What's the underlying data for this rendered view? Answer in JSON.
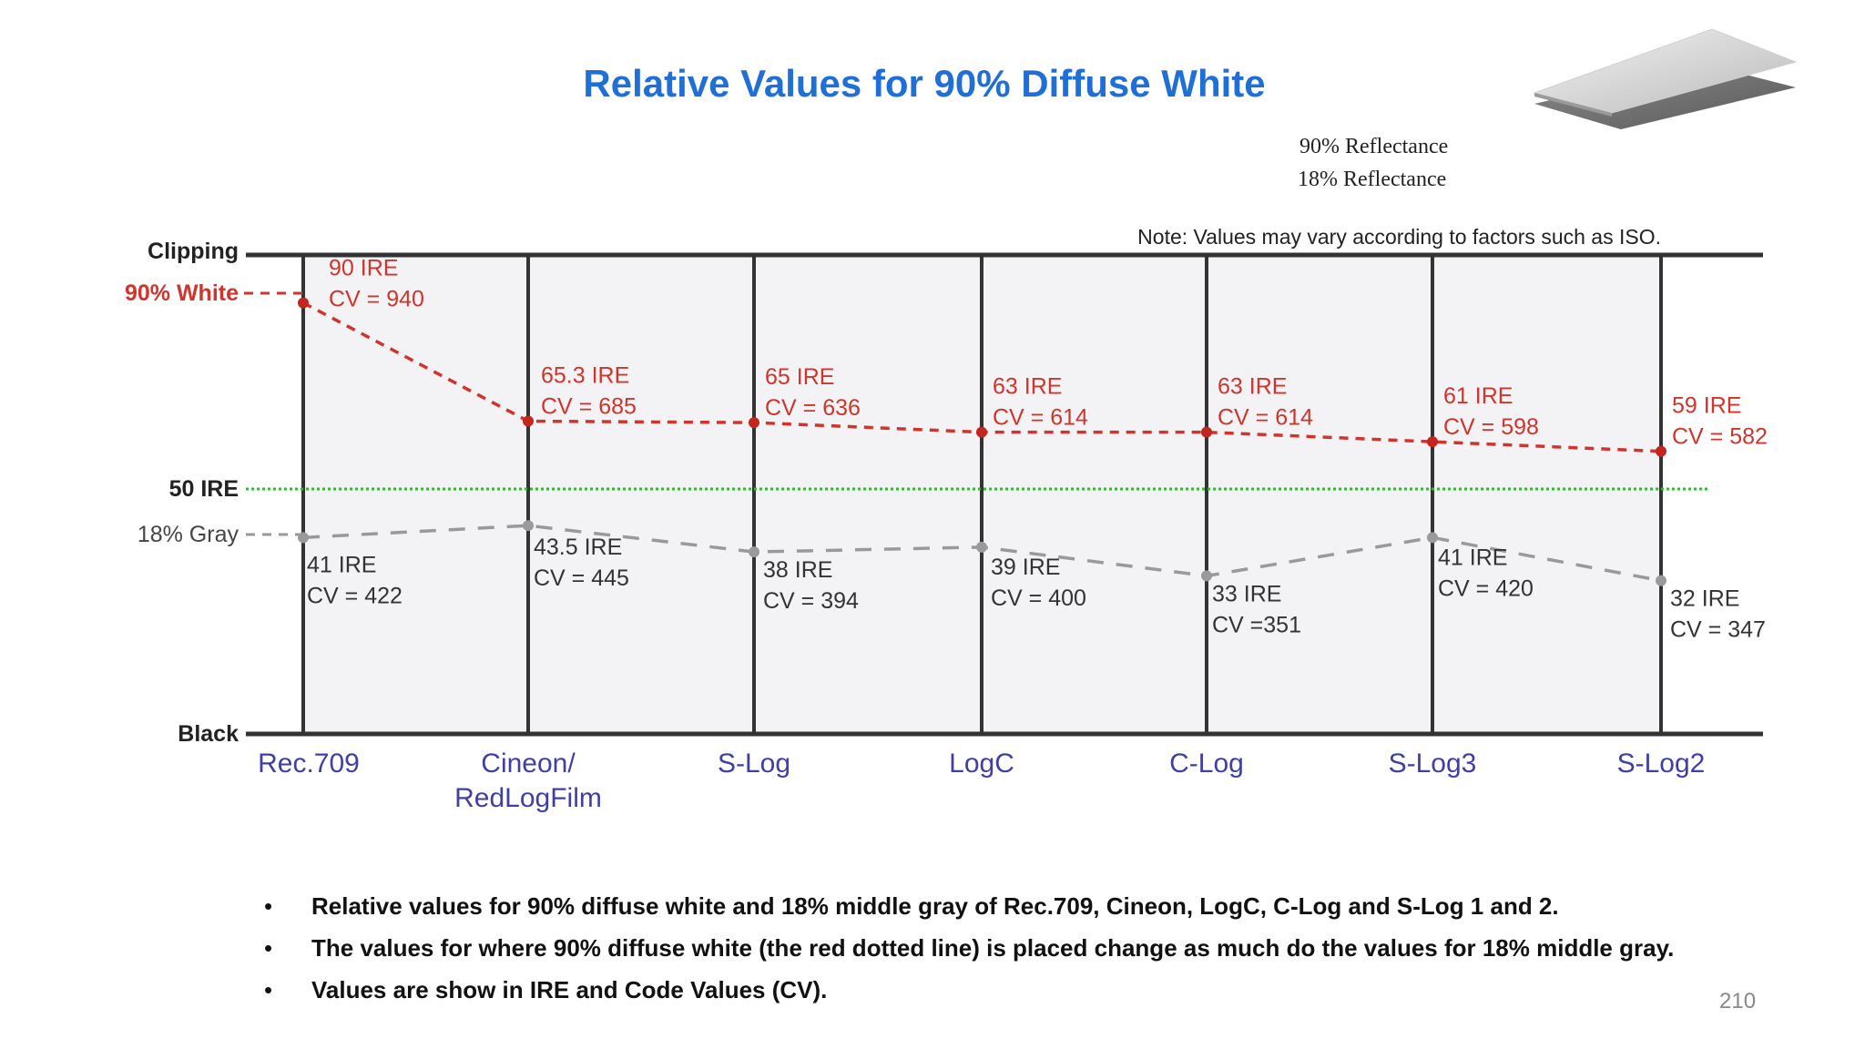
{
  "slide": {
    "title": "Relative Values for 90% Diffuse White",
    "page_number": "210",
    "reflectance_labels": [
      "90% Reflectance",
      "18% Reflectance"
    ],
    "bullets": [
      "Relative values for 90% diffuse white and 18% middle gray of Rec.709, Cineon, LogC, C-Log and S-Log 1 and 2.",
      "The values for where 90% diffuse white (the red dotted line) is placed change as much do the values for 18% middle gray.",
      "Values are show in IRE and Code Values (CV)."
    ]
  },
  "chart_data": {
    "type": "line",
    "note": "Note: Values may vary according to factors such as ISO.",
    "level_labels": {
      "clipping": "Clipping",
      "white": "90% White",
      "mid": "50 IRE",
      "gray": "18% Gray",
      "black": "Black"
    },
    "categories": [
      "Rec.709",
      "Cineon/\nRedLogFilm",
      "S-Log",
      "LogC",
      "C-Log",
      "S-Log3",
      "S-Log2"
    ],
    "ylim": [
      0,
      100
    ],
    "series": [
      {
        "name": "90% White",
        "color": "#d0342c",
        "ire": [
          90,
          65.3,
          65,
          63,
          63,
          61,
          59
        ],
        "ire_labels": [
          "90 IRE",
          "65.3 IRE",
          "65 IRE",
          "63 IRE",
          "63 IRE",
          "61 IRE",
          "59 IRE"
        ],
        "cv_labels": [
          "CV = 940",
          "CV = 685",
          "CV = 636",
          "CV = 614",
          "CV = 614",
          "CV = 598",
          "CV = 582"
        ]
      },
      {
        "name": "18% Gray",
        "color": "#999999",
        "ire": [
          41,
          43.5,
          38,
          39,
          33,
          41,
          32
        ],
        "ire_labels": [
          "41 IRE",
          "43.5 IRE",
          "38 IRE",
          "39 IRE",
          "33 IRE",
          "41 IRE",
          "32 IRE"
        ],
        "cv_labels": [
          "CV = 422",
          "CV = 445",
          "CV = 394",
          "CV = 400",
          "CV =351",
          "CV = 420",
          "CV = 347"
        ]
      }
    ],
    "colors": {
      "reference_50": "#3bb33b",
      "category_label": "#3f3fa6",
      "frame": "#333333"
    }
  }
}
